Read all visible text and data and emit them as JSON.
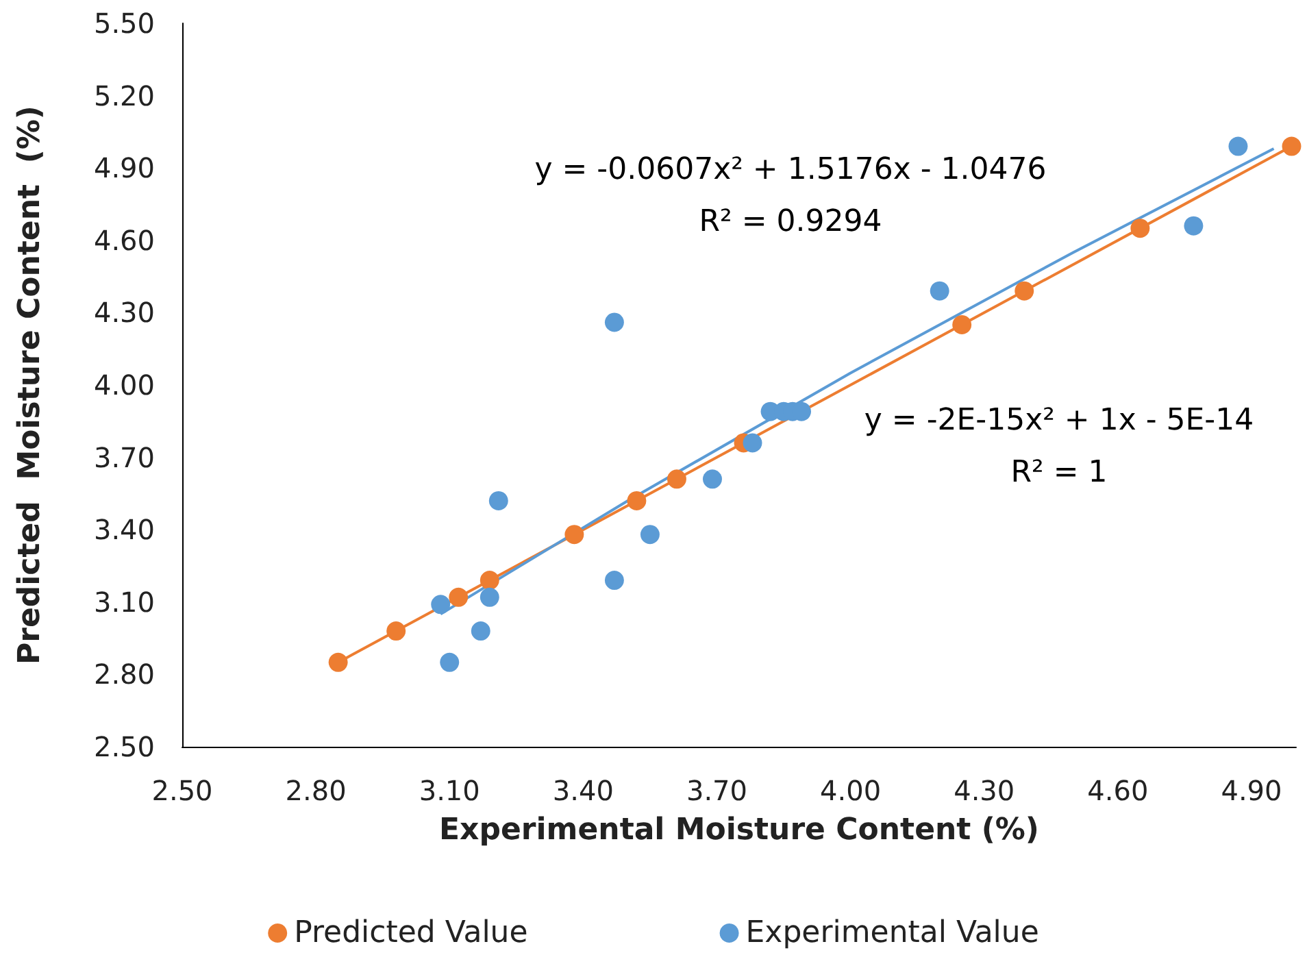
{
  "chart_data": {
    "type": "scatter",
    "xlabel": "Experimental Moisture Content (%)",
    "ylabel": "Predicted  Moisture Content  (%)",
    "xlim": [
      2.5,
      5.0
    ],
    "xticks": [
      {
        "value": 2.5,
        "label": "2.50"
      },
      {
        "value": 2.8,
        "label": "2.80"
      },
      {
        "value": 3.1,
        "label": "3.10"
      },
      {
        "value": 3.4,
        "label": "3.40"
      },
      {
        "value": 3.7,
        "label": "3.70"
      },
      {
        "value": 4.0,
        "label": "4.00"
      },
      {
        "value": 4.3,
        "label": "4.30"
      },
      {
        "value": 4.6,
        "label": "4.60"
      },
      {
        "value": 4.9,
        "label": "4.90"
      }
    ],
    "ylim": [
      2.5,
      5.5
    ],
    "yticks": [
      {
        "value": 2.5,
        "label": "2.50"
      },
      {
        "value": 2.8,
        "label": "2.80"
      },
      {
        "value": 3.1,
        "label": "3.10"
      },
      {
        "value": 3.4,
        "label": "3.40"
      },
      {
        "value": 3.7,
        "label": "3.70"
      },
      {
        "value": 4.0,
        "label": "4.00"
      },
      {
        "value": 4.3,
        "label": "4.30"
      },
      {
        "value": 4.6,
        "label": "4.60"
      },
      {
        "value": 4.9,
        "label": "4.90"
      },
      {
        "value": 5.2,
        "label": "5.20"
      },
      {
        "value": 5.5,
        "label": "5.50"
      }
    ],
    "grid": false,
    "legend": "bottom",
    "marker": "circle",
    "series": [
      {
        "name": "Predicted Value",
        "color": "#ed7d31",
        "x": [
          2.85,
          2.98,
          3.12,
          3.19,
          3.38,
          3.52,
          3.61,
          3.76,
          4.25,
          4.39,
          4.65,
          4.99
        ],
        "values": [
          2.85,
          2.98,
          3.12,
          3.19,
          3.38,
          3.52,
          3.61,
          3.76,
          4.25,
          4.39,
          4.65,
          4.99
        ]
      },
      {
        "name": "Experimental Value",
        "color": "#5b9bd5",
        "x": [
          3.08,
          3.1,
          3.17,
          3.19,
          3.21,
          3.47,
          3.47,
          3.55,
          3.69,
          3.78,
          3.82,
          3.85,
          3.87,
          3.89,
          4.2,
          4.77,
          4.87
        ],
        "values": [
          3.09,
          2.85,
          2.98,
          3.12,
          3.52,
          3.19,
          4.26,
          3.38,
          3.61,
          3.76,
          3.89,
          3.89,
          3.89,
          3.89,
          4.39,
          4.66,
          4.99
        ]
      },
      {
        "type": "line",
        "marker": "none",
        "color": "#ed7d31",
        "x": [
          2.85,
          4.99
        ],
        "values": [
          2.85,
          4.99
        ]
      },
      {
        "type": "line",
        "marker": "none",
        "color": "#5b9bd5",
        "x": [
          3.08,
          3.5,
          4.0,
          4.5,
          4.95
        ],
        "values": [
          3.05,
          3.52,
          4.05,
          4.55,
          4.98
        ]
      }
    ],
    "annotations": [
      "y = -0.0607x² + 1.5176x - 1.0476\nR² = 0.9294",
      "y = -2E-15x² + 1x - 5E-14\nR² = 1"
    ]
  }
}
